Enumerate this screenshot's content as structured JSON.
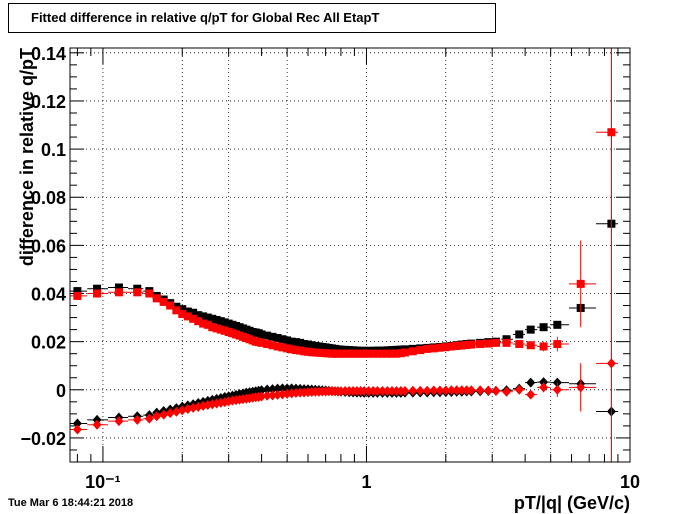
{
  "chart_data": {
    "type": "scatter",
    "title": "Fitted difference in relative q/pT  for Global Rec All EtapT",
    "xlabel": "pT/|q| (GeV/c)",
    "ylabel": "difference in relative q/pT",
    "xscale": "log",
    "xlim": [
      0.075,
      10
    ],
    "ylim": [
      -0.03,
      0.142
    ],
    "grid": true,
    "x_ticks": [
      {
        "value": 0.1,
        "label": "10⁻¹"
      },
      {
        "value": 1,
        "label": "1"
      },
      {
        "value": 10,
        "label": "10"
      }
    ],
    "y_ticks": [
      {
        "value": -0.02,
        "label": "−0.02"
      },
      {
        "value": 0,
        "label": "0"
      },
      {
        "value": 0.02,
        "label": "0.02"
      },
      {
        "value": 0.04,
        "label": "0.04"
      },
      {
        "value": 0.06,
        "label": "0.06"
      },
      {
        "value": 0.08,
        "label": "0.08"
      },
      {
        "value": 0.1,
        "label": "0.1"
      },
      {
        "value": 0.12,
        "label": "0.12"
      },
      {
        "value": 0.14,
        "label": "0.14"
      }
    ],
    "x": [
      0.08,
      0.095,
      0.115,
      0.135,
      0.15,
      0.16,
      0.17,
      0.18,
      0.19,
      0.2,
      0.21,
      0.22,
      0.23,
      0.24,
      0.25,
      0.26,
      0.27,
      0.28,
      0.29,
      0.3,
      0.31,
      0.32,
      0.33,
      0.34,
      0.35,
      0.36,
      0.37,
      0.38,
      0.39,
      0.4,
      0.42,
      0.44,
      0.46,
      0.48,
      0.5,
      0.52,
      0.54,
      0.56,
      0.58,
      0.6,
      0.62,
      0.64,
      0.66,
      0.68,
      0.7,
      0.72,
      0.74,
      0.76,
      0.78,
      0.8,
      0.83,
      0.86,
      0.89,
      0.92,
      0.95,
      0.98,
      1.02,
      1.06,
      1.1,
      1.15,
      1.2,
      1.25,
      1.3,
      1.35,
      1.4,
      1.5,
      1.6,
      1.7,
      1.8,
      1.9,
      2.0,
      2.1,
      2.2,
      2.3,
      2.4,
      2.5,
      2.7,
      2.9,
      3.1,
      3.4,
      3.8,
      4.2,
      4.7,
      5.3,
      6.5,
      8.5
    ],
    "series": [
      {
        "color": "#000000",
        "marker": "square",
        "values": [
          0.041,
          0.042,
          0.0425,
          0.042,
          0.041,
          0.039,
          0.0375,
          0.036,
          0.0345,
          0.0335,
          0.0325,
          0.032,
          0.031,
          0.0305,
          0.03,
          0.0295,
          0.029,
          0.0285,
          0.028,
          0.0275,
          0.027,
          0.0265,
          0.026,
          0.0255,
          0.025,
          0.0245,
          0.024,
          0.0238,
          0.0235,
          0.023,
          0.0225,
          0.022,
          0.0215,
          0.021,
          0.0205,
          0.02,
          0.0198,
          0.0195,
          0.019,
          0.0188,
          0.0185,
          0.0182,
          0.018,
          0.0178,
          0.0176,
          0.0174,
          0.0172,
          0.017,
          0.0168,
          0.0167,
          0.0166,
          0.0165,
          0.0164,
          0.0163,
          0.0162,
          0.0162,
          0.0162,
          0.0162,
          0.0163,
          0.0163,
          0.0164,
          0.0165,
          0.0166,
          0.0167,
          0.0168,
          0.017,
          0.0172,
          0.0174,
          0.0176,
          0.0178,
          0.018,
          0.0182,
          0.0185,
          0.0188,
          0.019,
          0.0192,
          0.0195,
          0.0198,
          0.02,
          0.021,
          0.023,
          0.025,
          0.026,
          0.027,
          0.034,
          0.069
        ]
      },
      {
        "color": "#ff0000",
        "marker": "square",
        "values": [
          0.039,
          0.04,
          0.0405,
          0.0405,
          0.04,
          0.038,
          0.0365,
          0.035,
          0.033,
          0.0315,
          0.0305,
          0.0295,
          0.0285,
          0.0275,
          0.027,
          0.026,
          0.0255,
          0.025,
          0.0245,
          0.024,
          0.0235,
          0.023,
          0.0225,
          0.022,
          0.0215,
          0.021,
          0.0205,
          0.02,
          0.0198,
          0.0195,
          0.019,
          0.0185,
          0.018,
          0.0176,
          0.0172,
          0.0168,
          0.0165,
          0.0163,
          0.016,
          0.0158,
          0.0156,
          0.0155,
          0.0154,
          0.0153,
          0.0152,
          0.0151,
          0.015,
          0.015,
          0.015,
          0.015,
          0.015,
          0.015,
          0.015,
          0.015,
          0.015,
          0.015,
          0.015,
          0.015,
          0.015,
          0.015,
          0.015,
          0.015,
          0.015,
          0.0152,
          0.0155,
          0.016,
          0.0165,
          0.017,
          0.0172,
          0.0175,
          0.0177,
          0.018,
          0.0182,
          0.0184,
          0.0186,
          0.0188,
          0.019,
          0.0192,
          0.0195,
          0.0195,
          0.019,
          0.0185,
          0.018,
          0.019,
          0.044,
          0.107
        ],
        "y_err": [
          0.001,
          0.001,
          0.001,
          0.001,
          0.001,
          0.001,
          0.001,
          0.001,
          0.001,
          0.001,
          0.001,
          0.001,
          0.001,
          0.001,
          0.001,
          0.001,
          0.001,
          0.001,
          0.001,
          0.001,
          0.001,
          0.001,
          0.001,
          0.001,
          0.001,
          0.001,
          0.001,
          0.001,
          0.001,
          0.001,
          0.001,
          0.001,
          0.001,
          0.001,
          0.001,
          0.001,
          0.001,
          0.001,
          0.001,
          0.001,
          0.001,
          0.001,
          0.001,
          0.001,
          0.001,
          0.001,
          0.001,
          0.001,
          0.001,
          0.001,
          0.001,
          0.001,
          0.001,
          0.001,
          0.001,
          0.001,
          0.001,
          0.001,
          0.001,
          0.001,
          0.001,
          0.001,
          0.001,
          0.001,
          0.001,
          0.001,
          0.001,
          0.001,
          0.001,
          0.001,
          0.001,
          0.001,
          0.001,
          0.001,
          0.001,
          0.001,
          0.001,
          0.001,
          0.001,
          0.001,
          0.001,
          0.0015,
          0.002,
          0.003,
          0.018,
          0.14
        ]
      },
      {
        "color": "#000000",
        "marker": "diamond",
        "values": [
          -0.014,
          -0.0125,
          -0.0115,
          -0.011,
          -0.0105,
          -0.0095,
          -0.0088,
          -0.0082,
          -0.0076,
          -0.007,
          -0.0065,
          -0.006,
          -0.0055,
          -0.005,
          -0.0046,
          -0.0042,
          -0.0038,
          -0.0034,
          -0.003,
          -0.0027,
          -0.0024,
          -0.0021,
          -0.0018,
          -0.0015,
          -0.0012,
          -0.001,
          -0.0008,
          -0.0006,
          -0.0004,
          -0.0002,
          0.0001,
          0.0003,
          0.0005,
          0.0006,
          0.0006,
          0.0006,
          0.0005,
          0.0004,
          0.0003,
          0.0002,
          0.0001,
          0.0,
          -0.0001,
          -0.0002,
          -0.0003,
          -0.0004,
          -0.0005,
          -0.0006,
          -0.0007,
          -0.0008,
          -0.0009,
          -0.001,
          -0.0011,
          -0.0012,
          -0.0012,
          -0.0013,
          -0.0013,
          -0.0013,
          -0.0013,
          -0.0013,
          -0.0013,
          -0.0013,
          -0.0013,
          -0.0013,
          -0.0012,
          -0.0012,
          -0.0011,
          -0.0011,
          -0.001,
          -0.001,
          -0.0009,
          -0.0009,
          -0.0008,
          -0.0008,
          -0.0007,
          -0.0007,
          -0.0006,
          -0.0005,
          -0.0004,
          -0.0002,
          0.0005,
          0.003,
          0.0032,
          0.003,
          0.0025,
          -0.009
        ]
      },
      {
        "color": "#ff0000",
        "marker": "diamond",
        "values": [
          -0.0165,
          -0.0145,
          -0.013,
          -0.0125,
          -0.012,
          -0.011,
          -0.0103,
          -0.0097,
          -0.0091,
          -0.0085,
          -0.008,
          -0.0075,
          -0.0071,
          -0.0067,
          -0.0063,
          -0.006,
          -0.0057,
          -0.0054,
          -0.0051,
          -0.0048,
          -0.0045,
          -0.0043,
          -0.0041,
          -0.0039,
          -0.0037,
          -0.0035,
          -0.0033,
          -0.0031,
          -0.003,
          -0.0028,
          -0.0025,
          -0.0023,
          -0.0021,
          -0.0019,
          -0.0017,
          -0.0015,
          -0.0013,
          -0.0012,
          -0.0011,
          -0.001,
          -0.0009,
          -0.0008,
          -0.0008,
          -0.0007,
          -0.0007,
          -0.0006,
          -0.0006,
          -0.0006,
          -0.0006,
          -0.0006,
          -0.0005,
          -0.0005,
          -0.0005,
          -0.0005,
          -0.0005,
          -0.0005,
          -0.0005,
          -0.0005,
          -0.0005,
          -0.0005,
          -0.0005,
          -0.0005,
          -0.0005,
          -0.0005,
          -0.0005,
          -0.0004,
          -0.0004,
          -0.0004,
          -0.0003,
          -0.0003,
          -0.0003,
          -0.0002,
          -0.0002,
          -0.0002,
          -0.0002,
          -0.0002,
          -0.0002,
          -0.0003,
          -0.0005,
          -0.0008,
          0.0,
          -0.002,
          0.001,
          0.0,
          0.001,
          0.011
        ],
        "y_err": [
          0.001,
          0.001,
          0.001,
          0.001,
          0.001,
          0.001,
          0.001,
          0.001,
          0.001,
          0.001,
          0.001,
          0.001,
          0.001,
          0.001,
          0.001,
          0.001,
          0.001,
          0.001,
          0.001,
          0.001,
          0.001,
          0.001,
          0.001,
          0.001,
          0.001,
          0.001,
          0.001,
          0.001,
          0.001,
          0.001,
          0.001,
          0.001,
          0.001,
          0.001,
          0.001,
          0.001,
          0.001,
          0.001,
          0.001,
          0.001,
          0.001,
          0.001,
          0.001,
          0.001,
          0.001,
          0.001,
          0.001,
          0.001,
          0.001,
          0.001,
          0.001,
          0.001,
          0.001,
          0.001,
          0.001,
          0.001,
          0.001,
          0.001,
          0.001,
          0.001,
          0.001,
          0.001,
          0.001,
          0.001,
          0.001,
          0.001,
          0.001,
          0.001,
          0.001,
          0.001,
          0.001,
          0.001,
          0.001,
          0.001,
          0.001,
          0.001,
          0.001,
          0.001,
          0.001,
          0.001,
          0.001,
          0.0015,
          0.002,
          0.003,
          0.01,
          0.14
        ]
      }
    ]
  },
  "footer": {
    "timestamp": "Tue Mar  6 18:44:21 2018"
  }
}
